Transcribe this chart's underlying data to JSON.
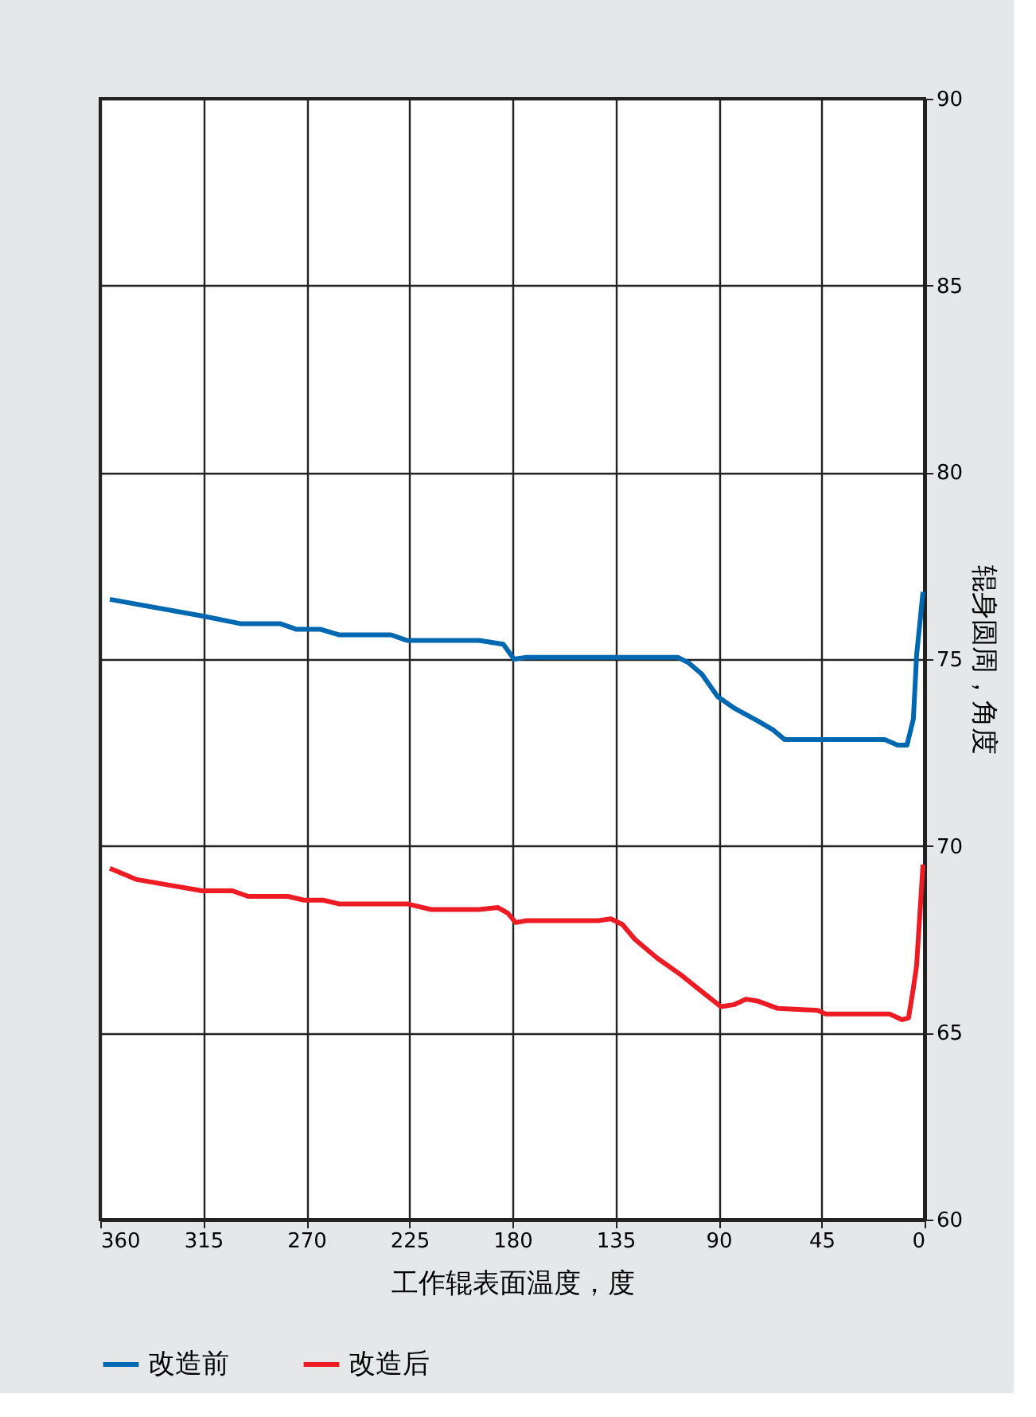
{
  "chart_data": {
    "type": "line",
    "xlabel": "工作辊表面温度，度",
    "ylabel": "辊身圆周，角度",
    "xlim": [
      360,
      0
    ],
    "xticks": [
      360,
      315,
      270,
      225,
      180,
      135,
      90,
      45,
      0
    ],
    "ylim": [
      60,
      90
    ],
    "yticks": [
      60,
      65,
      70,
      75,
      80,
      85,
      90
    ],
    "grid": true,
    "legend": "bottom",
    "line_style": "solid",
    "marker": "none",
    "series": [
      {
        "name": "改造前",
        "color": "#0067b1",
        "x": [
          355.8,
          315,
          298.8,
          281.5,
          274.5,
          264,
          255.8,
          233,
          226,
          194.6,
          184,
          179.3,
          173.8,
          107.8,
          103,
          97.3,
          90.4,
          83.4,
          73,
          66,
          61.2,
          17.4,
          11.8,
          7.7,
          4.9,
          3.5,
          0.7
        ],
        "values": [
          76.6,
          76.15,
          75.95,
          75.95,
          75.8,
          75.8,
          75.65,
          75.65,
          75.5,
          75.5,
          75.4,
          75.0,
          75.05,
          75.05,
          74.9,
          74.6,
          74.0,
          73.7,
          73.35,
          73.1,
          72.85,
          72.85,
          72.7,
          72.7,
          73.4,
          75.1,
          76.8
        ]
      },
      {
        "name": "改造后",
        "color": "#ed1c24",
        "x": [
          355.8,
          344,
          315.5,
          302.3,
          295.4,
          278,
          271,
          262.7,
          255.8,
          226,
          215.5,
          194.6,
          186.3,
          182,
          178.6,
          173.8,
          142.5,
          137,
          132,
          126.5,
          116.8,
          106.4,
          97.3,
          89,
          83.4,
          77.9,
          73,
          64,
          46.6,
          43.1,
          15.3,
          9.8,
          7,
          4.9,
          3.5,
          0.7
        ],
        "values": [
          69.4,
          69.1,
          68.8,
          68.8,
          68.65,
          68.65,
          68.55,
          68.55,
          68.45,
          68.45,
          68.3,
          68.3,
          68.35,
          68.2,
          67.95,
          68.0,
          68.0,
          68.05,
          67.9,
          67.5,
          67.0,
          66.55,
          66.1,
          65.7,
          65.75,
          65.9,
          65.85,
          65.65,
          65.6,
          65.5,
          65.5,
          65.35,
          65.4,
          66.2,
          66.8,
          69.5
        ]
      }
    ]
  }
}
